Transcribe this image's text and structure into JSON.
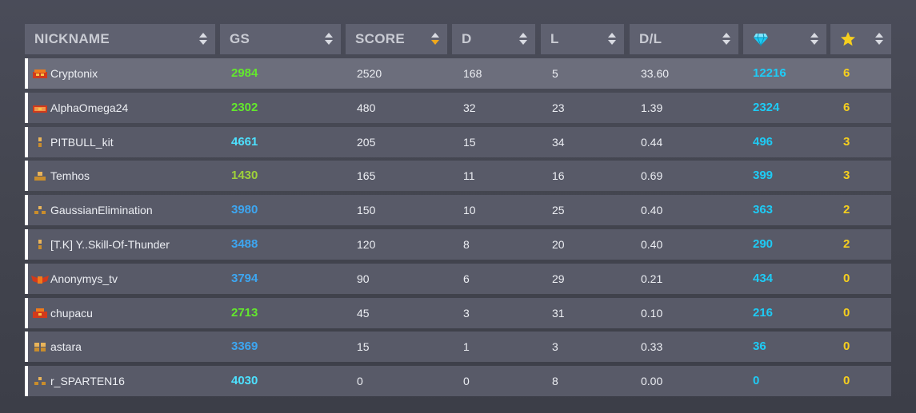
{
  "columns": [
    {
      "label": "NICKNAME",
      "sort": "none"
    },
    {
      "label": "GS",
      "sort": "none"
    },
    {
      "label": "SCORE",
      "sort": "desc"
    },
    {
      "label": "D",
      "sort": "none"
    },
    {
      "label": "L",
      "sort": "none"
    },
    {
      "label": "D/L",
      "sort": "none"
    },
    {
      "label": "",
      "icon": "diamond-icon",
      "sort": "none"
    },
    {
      "label": "",
      "icon": "star-icon",
      "sort": "none"
    }
  ],
  "colors": {
    "gs_green": "#63e82d",
    "gs_olive": "#9fd13a",
    "gs_cyan": "#4de1ff",
    "gs_blue": "#3da6f1",
    "diamond": "#1ecbf5",
    "star": "#f6cf1e",
    "sort_active": "#f0a81b"
  },
  "players": [
    {
      "nickname": "Cryptonix",
      "rank_icon": "rank-red-brick-icon",
      "gs": "2984",
      "gs_color": "#63e82d",
      "score": "2520",
      "d": "168",
      "l": "5",
      "dl": "33.60",
      "diamonds": "12216",
      "stars": "6"
    },
    {
      "nickname": "AlphaOmega24",
      "rank_icon": "rank-red-chest-icon",
      "gs": "2302",
      "gs_color": "#63e82d",
      "score": "480",
      "d": "32",
      "l": "23",
      "dl": "1.39",
      "diamonds": "2324",
      "stars": "6"
    },
    {
      "nickname": "PITBULL_kit",
      "rank_icon": "rank-gold-pillar-icon",
      "gs": "4661",
      "gs_color": "#4de1ff",
      "score": "205",
      "d": "15",
      "l": "34",
      "dl": "0.44",
      "diamonds": "496",
      "stars": "3"
    },
    {
      "nickname": "Temhos",
      "rank_icon": "rank-gold-stack-icon",
      "gs": "1430",
      "gs_color": "#9fd13a",
      "score": "165",
      "d": "11",
      "l": "16",
      "dl": "0.69",
      "diamonds": "399",
      "stars": "3"
    },
    {
      "nickname": "GaussianElimination",
      "rank_icon": "rank-gold-pyramid-icon",
      "gs": "3980",
      "gs_color": "#3da6f1",
      "score": "150",
      "d": "10",
      "l": "25",
      "dl": "0.40",
      "diamonds": "363",
      "stars": "2"
    },
    {
      "nickname": "[T.K] Y..Skill-Of-Thunder",
      "rank_icon": "rank-gold-pillar-icon",
      "gs": "3488",
      "gs_color": "#3da6f1",
      "score": "120",
      "d": "8",
      "l": "20",
      "dl": "0.40",
      "diamonds": "290",
      "stars": "2"
    },
    {
      "nickname": "Anonymys_tv",
      "rank_icon": "rank-red-wings-icon",
      "gs": "3794",
      "gs_color": "#3da6f1",
      "score": "90",
      "d": "6",
      "l": "29",
      "dl": "0.21",
      "diamonds": "434",
      "stars": "0"
    },
    {
      "nickname": "chupacu",
      "rank_icon": "rank-red-tower-icon",
      "gs": "2713",
      "gs_color": "#63e82d",
      "score": "45",
      "d": "3",
      "l": "31",
      "dl": "0.10",
      "diamonds": "216",
      "stars": "0"
    },
    {
      "nickname": "astara",
      "rank_icon": "rank-gold-blocks-icon",
      "gs": "3369",
      "gs_color": "#3da6f1",
      "score": "15",
      "d": "1",
      "l": "3",
      "dl": "0.33",
      "diamonds": "36",
      "stars": "0"
    },
    {
      "nickname": "r_SPARTEN16",
      "rank_icon": "rank-gold-pyramid-icon",
      "gs": "4030",
      "gs_color": "#4de1ff",
      "score": "0",
      "d": "0",
      "l": "8",
      "dl": "0.00",
      "diamonds": "0",
      "stars": "0"
    }
  ]
}
